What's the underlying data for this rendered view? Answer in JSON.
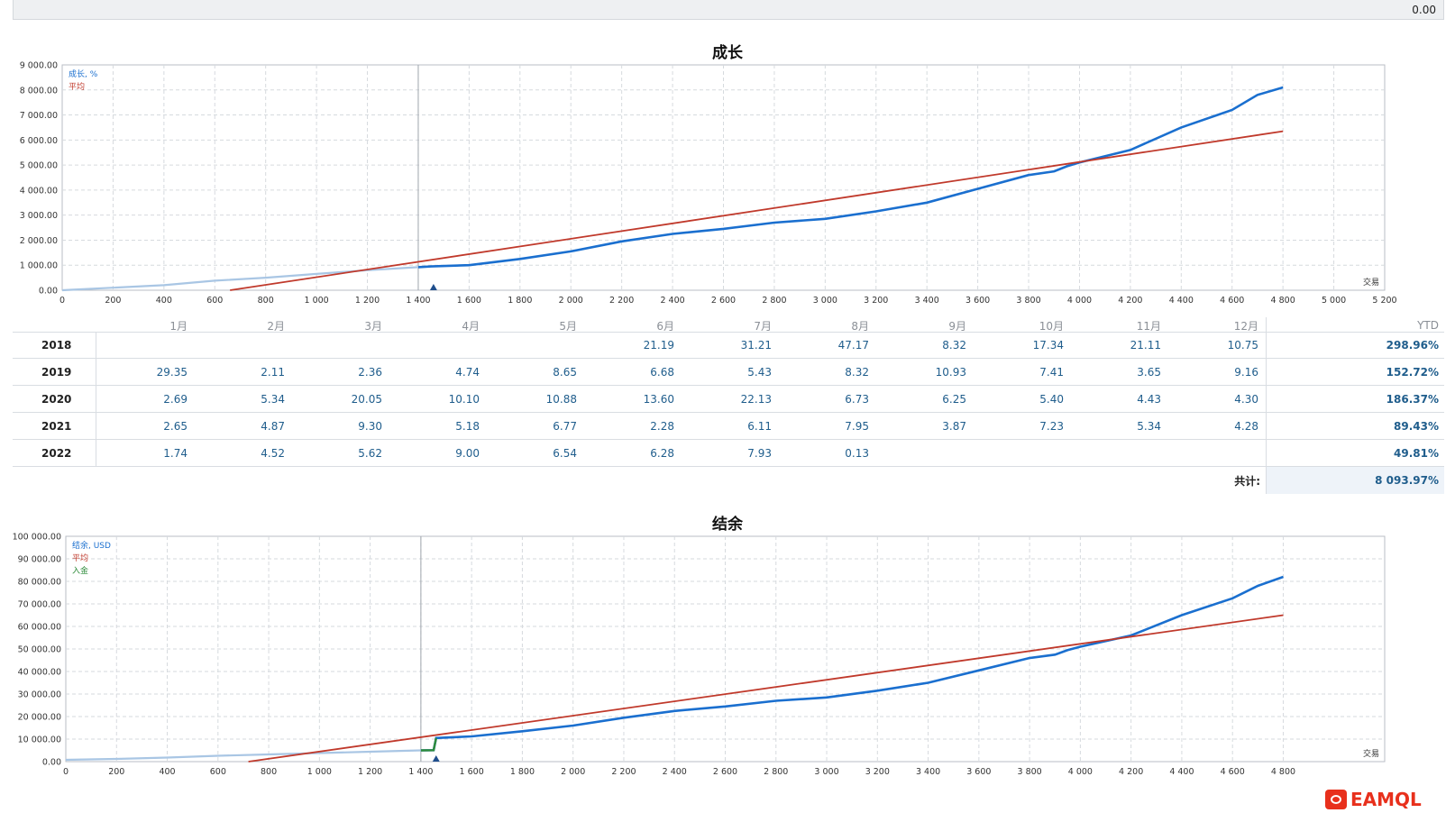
{
  "topbar": {
    "value": "0.00"
  },
  "growth": {
    "title": "成长",
    "legend": [
      "成长, %",
      "平均"
    ],
    "x_end_label": "交易"
  },
  "balance": {
    "title": "结余",
    "legend": [
      "结余, USD",
      "平均",
      "入金"
    ],
    "x_end_label": "交易"
  },
  "colors": {
    "series": "#1a6fcf",
    "pre_series": "#a9c6e4",
    "average": "#c0392b",
    "deposit": "#2e8b3a",
    "grid": "#d6dade"
  },
  "table": {
    "header": [
      "1月",
      "2月",
      "3月",
      "4月",
      "5月",
      "6月",
      "7月",
      "8月",
      "9月",
      "10月",
      "11月",
      "12月",
      "YTD"
    ],
    "rows": [
      {
        "year": "2018",
        "cells": [
          "",
          "",
          "",
          "",
          "",
          "21.19",
          "31.21",
          "47.17",
          "8.32",
          "17.34",
          "21.11",
          "10.75"
        ],
        "ytd": "298.96%"
      },
      {
        "year": "2019",
        "cells": [
          "29.35",
          "2.11",
          "2.36",
          "4.74",
          "8.65",
          "6.68",
          "5.43",
          "8.32",
          "10.93",
          "7.41",
          "3.65",
          "9.16"
        ],
        "ytd": "152.72%"
      },
      {
        "year": "2020",
        "cells": [
          "2.69",
          "5.34",
          "20.05",
          "10.10",
          "10.88",
          "13.60",
          "22.13",
          "6.73",
          "6.25",
          "5.40",
          "4.43",
          "4.30"
        ],
        "ytd": "186.37%"
      },
      {
        "year": "2021",
        "cells": [
          "2.65",
          "4.87",
          "9.30",
          "5.18",
          "6.77",
          "2.28",
          "6.11",
          "7.95",
          "3.87",
          "7.23",
          "5.34",
          "4.28"
        ],
        "ytd": "89.43%"
      },
      {
        "year": "2022",
        "cells": [
          "1.74",
          "4.52",
          "5.62",
          "9.00",
          "6.54",
          "6.28",
          "7.93",
          "0.13",
          "",
          "",
          "",
          ""
        ],
        "ytd": "49.81%"
      }
    ],
    "total_label": "共计:",
    "total_value": "8 093.97%"
  },
  "logo": {
    "text": "EAMQL"
  },
  "chart_data": [
    {
      "type": "line",
      "title": "成长",
      "xlabel": "交易",
      "ylabel": "成长, %",
      "xlim": [
        0,
        5200
      ],
      "ylim": [
        0,
        9000
      ],
      "x_ticks": [
        "0",
        "200",
        "400",
        "600",
        "800",
        "1 000",
        "1 200",
        "1 400",
        "1 600",
        "1 800",
        "2 000",
        "2 200",
        "2 400",
        "2 600",
        "2 800",
        "3 000",
        "3 200",
        "3 400",
        "3 600",
        "3 800",
        "4 000",
        "4 200",
        "4 400",
        "4 600",
        "4 800",
        "5 000",
        "5 200"
      ],
      "y_ticks": [
        "0.00",
        "1 000.00",
        "2 000.00",
        "3 000.00",
        "4 000.00",
        "5 000.00",
        "6 000.00",
        "7 000.00",
        "8 000.00",
        "9 000.00"
      ],
      "marker_x": 1460,
      "series": [
        {
          "name": "成长, %",
          "pre_end": 1400,
          "points": [
            [
              0,
              0
            ],
            [
              200,
              100
            ],
            [
              400,
              200
            ],
            [
              600,
              380
            ],
            [
              800,
              500
            ],
            [
              1000,
              650
            ],
            [
              1200,
              800
            ],
            [
              1400,
              920
            ],
            [
              1450,
              950
            ],
            [
              1600,
              1000
            ],
            [
              1800,
              1250
            ],
            [
              2000,
              1550
            ],
            [
              2200,
              1950
            ],
            [
              2400,
              2250
            ],
            [
              2600,
              2450
            ],
            [
              2800,
              2700
            ],
            [
              3000,
              2850
            ],
            [
              3200,
              3150
            ],
            [
              3400,
              3500
            ],
            [
              3600,
              4050
            ],
            [
              3800,
              4600
            ],
            [
              3900,
              4750
            ],
            [
              3950,
              4950
            ],
            [
              4000,
              5100
            ],
            [
              4200,
              5600
            ],
            [
              4400,
              6500
            ],
            [
              4600,
              7200
            ],
            [
              4700,
              7800
            ],
            [
              4800,
              8100
            ]
          ]
        },
        {
          "name": "平均",
          "points": [
            [
              660,
              0
            ],
            [
              4800,
              6350
            ]
          ]
        }
      ]
    },
    {
      "type": "line",
      "title": "结余",
      "xlabel": "交易",
      "ylabel": "结余, USD",
      "xlim": [
        0,
        5200
      ],
      "ylim": [
        0,
        100000
      ],
      "x_ticks": [
        "0",
        "200",
        "400",
        "600",
        "800",
        "1 000",
        "1 200",
        "1 400",
        "1 600",
        "1 800",
        "2 000",
        "2 200",
        "2 400",
        "2 600",
        "2 800",
        "3 000",
        "3 200",
        "3 400",
        "3 600",
        "3 800",
        "4 000",
        "4 200",
        "4 400",
        "4 600",
        "4 800"
      ],
      "y_ticks": [
        "0.00",
        "10 000.00",
        "20 000.00",
        "30 000.00",
        "40 000.00",
        "50 000.00",
        "60 000.00",
        "70 000.00",
        "80 000.00",
        "90 000.00",
        "100 000.00"
      ],
      "marker_x": 1460,
      "series": [
        {
          "name": "结余, USD",
          "pre_end": 1400,
          "points": [
            [
              0,
              800
            ],
            [
              200,
              1200
            ],
            [
              400,
              1800
            ],
            [
              600,
              2600
            ],
            [
              800,
              3200
            ],
            [
              1000,
              3800
            ],
            [
              1200,
              4400
            ],
            [
              1400,
              5000
            ],
            [
              1450,
              5100
            ],
            [
              1460,
              10500
            ],
            [
              1600,
              11200
            ],
            [
              1800,
              13500
            ],
            [
              2000,
              16000
            ],
            [
              2200,
              19500
            ],
            [
              2400,
              22500
            ],
            [
              2600,
              24500
            ],
            [
              2800,
              27000
            ],
            [
              3000,
              28500
            ],
            [
              3200,
              31500
            ],
            [
              3400,
              35000
            ],
            [
              3600,
              40500
            ],
            [
              3800,
              46000
            ],
            [
              3900,
              47500
            ],
            [
              3950,
              49500
            ],
            [
              4000,
              51000
            ],
            [
              4200,
              56000
            ],
            [
              4400,
              65000
            ],
            [
              4600,
              72500
            ],
            [
              4700,
              78000
            ],
            [
              4800,
              82000
            ]
          ]
        },
        {
          "name": "平均",
          "points": [
            [
              720,
              0
            ],
            [
              4800,
              65000
            ]
          ]
        },
        {
          "name": "入金",
          "points": [
            [
              1400,
              5000
            ],
            [
              1450,
              5100
            ],
            [
              1460,
              10500
            ]
          ]
        }
      ]
    }
  ]
}
